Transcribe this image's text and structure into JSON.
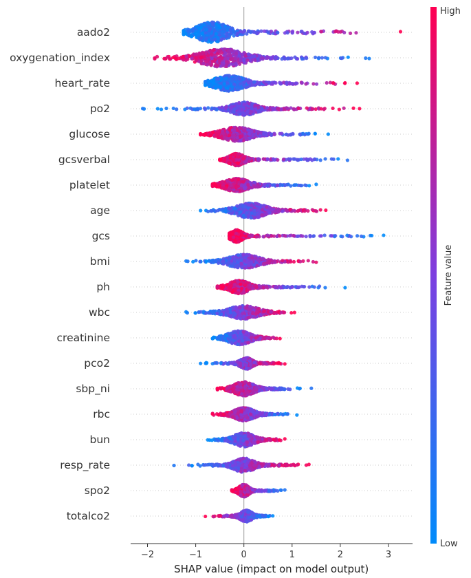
{
  "chart_data": {
    "type": "scatter",
    "subtype": "shap-beeswarm",
    "title": "",
    "xlabel": "SHAP value (impact on model output)",
    "ylabel": "",
    "xlim": [
      -2.35,
      3.5
    ],
    "x_ticks": [
      -2,
      -1,
      0,
      1,
      2,
      3
    ],
    "x_tick_labels": [
      "−2",
      "−1",
      "0",
      "1",
      "2",
      "3"
    ],
    "colorbar": {
      "label": "Feature value",
      "high_label": "High",
      "low_label": "Low",
      "high_color": "#ff0052",
      "low_color": "#008bfb",
      "mid_color": "#7c3fe0"
    },
    "features": [
      {
        "name": "aado2",
        "min": -1.25,
        "max": 3.25,
        "peak": -0.65,
        "spread": 0.32,
        "width": 1.0,
        "low_side": "left"
      },
      {
        "name": "oxygenation_index",
        "min": -1.85,
        "max": 2.6,
        "peak": -0.45,
        "spread": 0.45,
        "width": 0.85,
        "low_side": "right"
      },
      {
        "name": "heart_rate",
        "min": -0.8,
        "max": 2.35,
        "peak": -0.3,
        "spread": 0.3,
        "width": 0.7,
        "low_side": "left"
      },
      {
        "name": "po2",
        "min": -2.1,
        "max": 2.4,
        "peak": 0.0,
        "spread": 0.25,
        "width": 0.55,
        "low_side": "left"
      },
      {
        "name": "glucose",
        "min": -0.9,
        "max": 1.75,
        "peak": -0.15,
        "spread": 0.3,
        "width": 0.6,
        "low_side": "right"
      },
      {
        "name": "gcsverbal",
        "min": -0.5,
        "max": 2.15,
        "peak": -0.15,
        "spread": 0.15,
        "width": 0.5,
        "low_side": "right"
      },
      {
        "name": "platelet",
        "min": -0.65,
        "max": 1.5,
        "peak": -0.15,
        "spread": 0.25,
        "width": 0.55,
        "low_side": "right"
      },
      {
        "name": "age",
        "min": -0.9,
        "max": 1.7,
        "peak": 0.15,
        "spread": 0.3,
        "width": 0.65,
        "low_side": "left"
      },
      {
        "name": "gcs",
        "min": -0.3,
        "max": 2.9,
        "peak": -0.15,
        "spread": 0.12,
        "width": 0.5,
        "low_side": "right"
      },
      {
        "name": "bmi",
        "min": -1.2,
        "max": 1.5,
        "peak": 0.0,
        "spread": 0.3,
        "width": 0.6,
        "low_side": "left"
      },
      {
        "name": "ph",
        "min": -0.55,
        "max": 2.1,
        "peak": -0.1,
        "spread": 0.2,
        "width": 0.55,
        "low_side": "right"
      },
      {
        "name": "wbc",
        "min": -1.2,
        "max": 1.05,
        "peak": 0.0,
        "spread": 0.3,
        "width": 0.55,
        "low_side": "left"
      },
      {
        "name": "creatinine",
        "min": -0.65,
        "max": 0.75,
        "peak": -0.1,
        "spread": 0.22,
        "width": 0.6,
        "low_side": "left"
      },
      {
        "name": "pco2",
        "min": -0.9,
        "max": 0.85,
        "peak": 0.05,
        "spread": 0.12,
        "width": 0.45,
        "low_side": "left"
      },
      {
        "name": "sbp_ni",
        "min": -0.55,
        "max": 1.4,
        "peak": 0.0,
        "spread": 0.2,
        "width": 0.6,
        "low_side": "right"
      },
      {
        "name": "rbc",
        "min": -0.65,
        "max": 1.1,
        "peak": 0.0,
        "spread": 0.2,
        "width": 0.55,
        "low_side": "right"
      },
      {
        "name": "bun",
        "min": -0.75,
        "max": 0.85,
        "peak": 0.0,
        "spread": 0.2,
        "width": 0.6,
        "low_side": "left"
      },
      {
        "name": "resp_rate",
        "min": -1.45,
        "max": 1.35,
        "peak": 0.0,
        "spread": 0.2,
        "width": 0.6,
        "low_side": "left"
      },
      {
        "name": "spo2",
        "min": -0.25,
        "max": 0.85,
        "peak": 0.0,
        "spread": 0.1,
        "width": 0.5,
        "low_side": "right"
      },
      {
        "name": "totalco2",
        "min": -0.8,
        "max": 0.6,
        "peak": 0.05,
        "spread": 0.12,
        "width": 0.45,
        "low_side": "right"
      }
    ]
  }
}
